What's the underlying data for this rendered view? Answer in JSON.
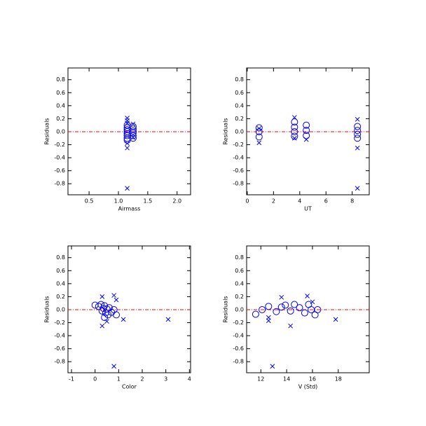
{
  "chart_data": [
    {
      "type": "scatter",
      "xlabel": "Airmass",
      "ylabel": "Residuals",
      "xlim": [
        0.14,
        2.23
      ],
      "ylim": [
        -0.97,
        0.98
      ],
      "xticks": [
        0.5,
        {
          "value": 1,
          "label": "1.0"
        },
        1.5,
        {
          "value": 2,
          "label": "2.0"
        }
      ],
      "yticks": [
        -0.8,
        -0.6,
        -0.4,
        -0.2,
        {
          "value": 0,
          "label": "0.0"
        },
        0.2,
        0.4,
        0.6,
        0.8
      ],
      "hline": 0,
      "hline_color": "#ff0000",
      "series": [
        {
          "marker": "circle",
          "color": "#0000ff",
          "x": [
            1.15,
            1.15,
            1.15,
            1.15,
            1.15,
            1.15,
            1.15,
            1.15,
            1.25,
            1.25,
            1.25,
            1.25,
            1.25,
            1.25
          ],
          "values": [
            0.1,
            0.06,
            0.03,
            0.0,
            -0.03,
            -0.06,
            -0.1,
            -0.13,
            0.08,
            0.04,
            0.01,
            -0.02,
            -0.06,
            -0.1
          ]
        },
        {
          "marker": "x",
          "color": "#0000ff",
          "x": [
            1.15,
            1.15,
            1.15,
            1.15,
            1.15,
            1.15,
            1.25,
            1.25
          ],
          "values": [
            0.21,
            0.17,
            0.13,
            -0.18,
            -0.25,
            -0.87,
            0.12,
            -0.09
          ]
        }
      ]
    },
    {
      "type": "scatter",
      "xlabel": "UT",
      "ylabel": "Residuals",
      "xlim": [
        -0.05,
        9.3
      ],
      "ylim": [
        -0.97,
        0.98
      ],
      "xticks": [
        0,
        2,
        4,
        6,
        8
      ],
      "yticks": [
        -0.8,
        -0.6,
        -0.4,
        -0.2,
        {
          "value": 0,
          "label": "0.0"
        },
        0.2,
        0.4,
        0.6,
        0.8
      ],
      "hline": 0,
      "hline_color": "#ff0000",
      "series": [
        {
          "marker": "circle",
          "color": "#0000ff",
          "x": [
            0.9,
            0.9,
            0.9,
            3.6,
            3.6,
            3.6,
            3.6,
            4.5,
            4.5,
            4.5,
            8.4,
            8.4,
            8.4,
            8.4
          ],
          "values": [
            0.06,
            0.0,
            -0.08,
            0.15,
            0.07,
            0.0,
            -0.07,
            0.1,
            0.02,
            -0.06,
            0.08,
            0.02,
            -0.04,
            -0.1
          ]
        },
        {
          "marker": "x",
          "color": "#0000ff",
          "x": [
            0.9,
            3.6,
            3.6,
            4.5,
            8.4,
            8.4,
            8.4,
            0.9
          ],
          "values": [
            -0.17,
            0.22,
            -0.1,
            -0.12,
            0.19,
            -0.25,
            -0.87,
            0.05
          ]
        }
      ]
    },
    {
      "type": "scatter",
      "xlabel": "Color",
      "ylabel": "Residuals",
      "xlim": [
        -1.15,
        4.05
      ],
      "ylim": [
        -0.97,
        0.98
      ],
      "xticks": [
        -1,
        0,
        1,
        2,
        3,
        4
      ],
      "yticks": [
        -0.8,
        -0.6,
        -0.4,
        -0.2,
        {
          "value": 0,
          "label": "0.0"
        },
        0.2,
        0.4,
        0.6,
        0.8
      ],
      "hline": 0,
      "hline_color": "#ff0000",
      "series": [
        {
          "marker": "circle",
          "color": "#0000ff",
          "x": [
            0.0,
            0.15,
            0.25,
            0.3,
            0.35,
            0.4,
            0.45,
            0.5,
            0.55,
            0.6,
            0.7,
            0.8,
            0.9,
            0.4
          ],
          "values": [
            0.07,
            0.05,
            0.08,
            -0.02,
            0.02,
            0.06,
            -0.05,
            0.01,
            -0.08,
            0.03,
            -0.04,
            0.0,
            -0.08,
            -0.12
          ]
        },
        {
          "marker": "x",
          "color": "#0000ff",
          "x": [
            0.3,
            0.3,
            0.5,
            0.8,
            0.9,
            1.2,
            3.1,
            0.8
          ],
          "values": [
            0.2,
            -0.25,
            -0.18,
            0.22,
            0.15,
            -0.15,
            -0.15,
            -0.87
          ]
        }
      ]
    },
    {
      "type": "scatter",
      "xlabel": "V (Std)",
      "ylabel": "Residuals",
      "xlim": [
        10.9,
        20.4
      ],
      "ylim": [
        -0.97,
        0.98
      ],
      "xticks": [
        12,
        14,
        16,
        18
      ],
      "yticks": [
        -0.8,
        -0.6,
        -0.4,
        -0.2,
        {
          "value": 0,
          "label": "0.0"
        },
        0.2,
        0.4,
        0.6,
        0.8
      ],
      "hline": 0,
      "hline_color": "#ff0000",
      "series": [
        {
          "marker": "circle",
          "color": "#0000ff",
          "x": [
            11.6,
            12.1,
            12.6,
            13.2,
            13.6,
            13.9,
            14.3,
            14.6,
            15.0,
            15.4,
            15.7,
            15.9,
            16.2,
            16.4
          ],
          "values": [
            -0.07,
            0.0,
            0.05,
            -0.03,
            0.04,
            0.07,
            -0.02,
            0.08,
            0.03,
            -0.05,
            0.08,
            0.0,
            -0.08,
            0.0
          ]
        },
        {
          "marker": "x",
          "color": "#0000ff",
          "x": [
            12.6,
            12.6,
            13.6,
            14.3,
            15.6,
            16.0,
            17.8,
            12.9
          ],
          "values": [
            -0.12,
            -0.17,
            0.19,
            -0.25,
            0.21,
            0.12,
            -0.15,
            -0.87
          ]
        }
      ]
    }
  ]
}
